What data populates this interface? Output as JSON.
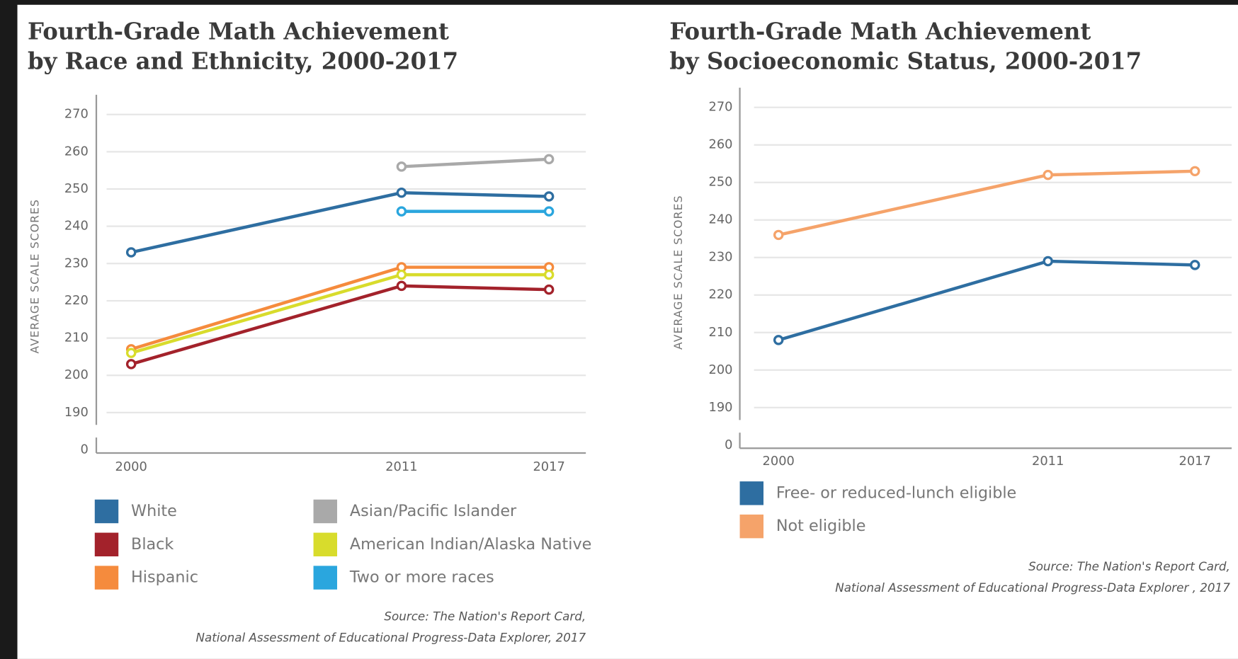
{
  "chart_data": [
    {
      "type": "line",
      "title": [
        "Fourth-Grade Math Achievement",
        "by Race and Ethnicity, 2000-2017"
      ],
      "y_label": "AVERAGE SCALE SCORES",
      "x": [
        2000,
        2011,
        2017
      ],
      "xlim": [
        1999,
        2018.5
      ],
      "xticks": [
        2000,
        2011,
        2017
      ],
      "ylim": [
        0,
        270
      ],
      "yticks": [
        0,
        190,
        200,
        210,
        220,
        230,
        240,
        250,
        260,
        270
      ],
      "grid": true,
      "series": [
        {
          "name": "White",
          "color": "#2e6ea1",
          "values": [
            233,
            249,
            248
          ]
        },
        {
          "name": "Black",
          "color": "#a3222b",
          "values": [
            203,
            224,
            223
          ]
        },
        {
          "name": "Hispanic",
          "color": "#f58b3d",
          "values": [
            207,
            229,
            229
          ]
        },
        {
          "name": "Asian/Pacific Islander",
          "color": "#a9a9a9",
          "values": [
            null,
            256,
            258
          ]
        },
        {
          "name": "American Indian/Alaska Native",
          "color": "#d8dc2c",
          "values": [
            206,
            227,
            227
          ]
        },
        {
          "name": "Two or more races",
          "color": "#2aa6de",
          "values": [
            null,
            244,
            244
          ]
        }
      ],
      "source": [
        "Source:  The Nation's Report Card,",
        "National Assessment of Educational Progress-Data Explorer, 2017"
      ]
    },
    {
      "type": "line",
      "title": [
        "Fourth-Grade Math Achievement",
        "by Socioeconomic Status, 2000-2017"
      ],
      "y_label": "AVERAGE SCALE SCORES",
      "x": [
        2000,
        2011,
        2017
      ],
      "xlim": [
        1999,
        2018.5
      ],
      "xticks": [
        2000,
        2011,
        2017
      ],
      "ylim": [
        0,
        270
      ],
      "yticks": [
        0,
        190,
        200,
        210,
        220,
        230,
        240,
        250,
        260,
        270
      ],
      "grid": true,
      "series": [
        {
          "name": "Free- or reduced-lunch eligible",
          "color": "#2e6ea1",
          "values": [
            208,
            229,
            228
          ]
        },
        {
          "name": "Not eligible",
          "color": "#f5a36a",
          "values": [
            236,
            252,
            253
          ]
        }
      ],
      "source": [
        "Source:  The Nation's Report Card,",
        "National Assessment of Educational Progress-Data Explorer , 2017"
      ]
    }
  ]
}
